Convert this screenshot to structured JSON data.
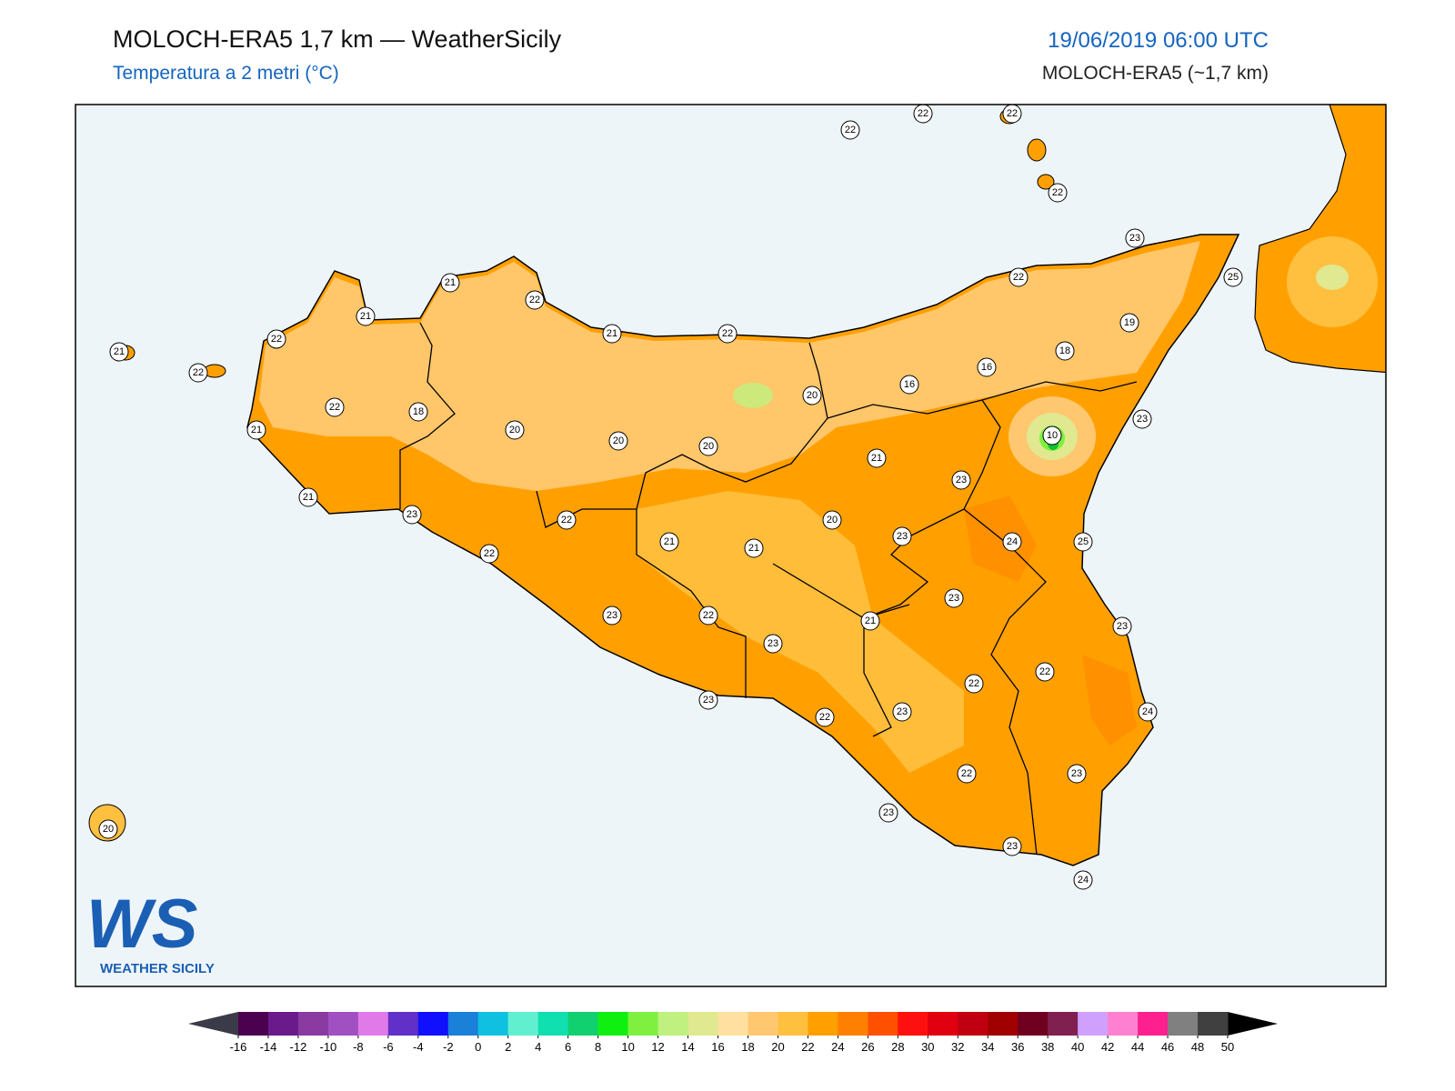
{
  "header": {
    "title": "MOLOCH-ERA5 1,7 km — WeatherSicily",
    "subtitle": "Temperatura a 2 metri (°C)",
    "datetime": "19/06/2019 06:00 UTC",
    "model": "MOLOCH-ERA5 (~1,7 km)"
  },
  "map": {
    "labels": [
      22,
      22,
      22,
      22,
      23,
      25,
      22,
      19,
      18,
      16,
      16,
      10,
      23,
      21,
      22,
      21,
      22,
      21,
      22,
      21,
      22,
      20,
      22,
      18,
      21,
      20,
      20,
      20,
      21,
      23,
      21,
      23,
      22,
      20,
      21,
      21,
      23,
      24,
      25,
      22,
      23,
      23,
      23,
      22,
      21,
      23,
      22,
      22,
      23,
      22,
      23,
      24,
      22,
      23,
      20,
      23,
      23,
      24
    ]
  },
  "logo": {
    "mark": "WS",
    "name": "WEATHER SICILY"
  },
  "colorbar": {
    "ticks": [
      -16,
      -14,
      -12,
      -10,
      -8,
      -6,
      -4,
      -2,
      0,
      2,
      4,
      6,
      8,
      10,
      12,
      14,
      16,
      18,
      20,
      22,
      24,
      26,
      28,
      30,
      32,
      34,
      36,
      38,
      40,
      42,
      44,
      46,
      48,
      50
    ],
    "colors": [
      "#4b0050",
      "#6a1a8a",
      "#8a3aa0",
      "#a050c0",
      "#e07ae8",
      "#6030c8",
      "#1010ff",
      "#1a80d8",
      "#10c0e0",
      "#60f0d0",
      "#10e0b0",
      "#10d070",
      "#10f010",
      "#80f040",
      "#c0f080",
      "#e0e890",
      "#ffe0a0",
      "#ffc870",
      "#ffc040",
      "#ffa000",
      "#ff8000",
      "#ff5000",
      "#ff1010",
      "#e00010",
      "#c00010",
      "#a00000",
      "#700020",
      "#802050",
      "#d0a0ff",
      "#ff80d0",
      "#ff2090",
      "#808080",
      "#404040"
    ],
    "under_color": "#3a3a48",
    "over_color": "#000000"
  }
}
